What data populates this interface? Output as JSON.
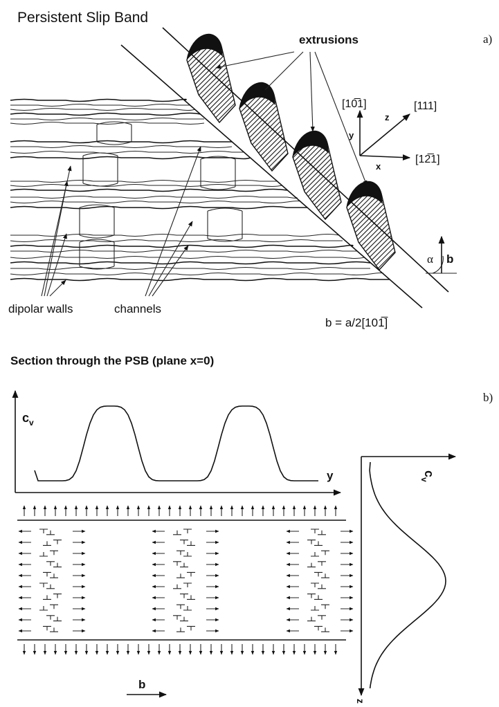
{
  "panel_a": {
    "title": "Persistent Slip Band",
    "label": "a)",
    "extrusions": "extrusions",
    "axes": {
      "y_direction": "[10̅1]",
      "z_direction": "[111]",
      "x_direction": "[12̅1]",
      "x": "x",
      "y": "y",
      "z": "z"
    },
    "angle": "α",
    "burgers_symbol": "b",
    "dipolar_walls": "dipolar walls",
    "channels": "channels",
    "burgers_vector": "b = a/2[101̅]"
  },
  "panel_b": {
    "title": "Section through the PSB (plane x=0)",
    "label": "b)",
    "left_plot": {
      "y_label": {
        "symbol": "c",
        "subscript": "v"
      },
      "x_label": "y"
    },
    "right_plot": {
      "x_label": {
        "symbol": "c",
        "subscript": "v"
      },
      "y_label": "z"
    },
    "burgers_symbol": "b"
  }
}
